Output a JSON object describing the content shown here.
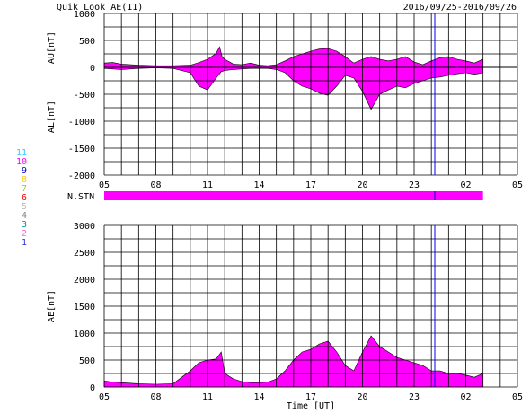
{
  "header": {
    "title": "Quik Look AE(11)",
    "date_range": "2016/09/25-2016/09/26"
  },
  "legend": {
    "entries": [
      {
        "label": "11",
        "color": "#33ccff"
      },
      {
        "label": "10",
        "color": "#ff00ff"
      },
      {
        "label": "9",
        "color": "#0000cc"
      },
      {
        "label": "8",
        "color": "#ffcc00"
      },
      {
        "label": "7",
        "color": "#99cc33"
      },
      {
        "label": "6",
        "color": "#ff0000"
      },
      {
        "label": "5",
        "color": "#bbbbbb"
      },
      {
        "label": "4",
        "color": "#888888"
      },
      {
        "label": "3",
        "color": "#009999"
      },
      {
        "label": "2",
        "color": "#ff66cc"
      },
      {
        "label": "1",
        "color": "#3333cc"
      }
    ]
  },
  "colors": {
    "fill": "#ff00ff",
    "grid": "#000000",
    "marker": "#0000ff"
  },
  "x_ticks": [
    "05",
    "08",
    "11",
    "14",
    "17",
    "20",
    "23",
    "02",
    "05"
  ],
  "chart_data": [
    {
      "type": "area",
      "ylabel_upper": "AU[nT]",
      "ylabel_lower": "AL[nT]",
      "ylim": [
        -2000,
        1000
      ],
      "yticks": [
        "1000",
        "500",
        "0",
        "-500",
        "-1000",
        "-1500",
        "-2000"
      ],
      "xlim": [
        0,
        24
      ],
      "grid": true,
      "series": [
        {
          "name": "AU",
          "x": [
            0,
            0.5,
            1,
            2,
            3,
            4,
            5,
            5.5,
            6,
            6.5,
            6.7,
            6.85,
            7,
            7.5,
            8,
            8.5,
            9,
            9.5,
            10,
            10.5,
            11,
            11.5,
            12,
            12.5,
            13,
            13.5,
            14,
            14.5,
            15,
            15.5,
            16,
            16.5,
            17,
            17.5,
            18,
            18.5,
            19,
            19.5,
            20,
            20.5,
            21,
            21.5,
            22
          ],
          "y": [
            80,
            90,
            60,
            40,
            30,
            30,
            40,
            90,
            150,
            260,
            380,
            200,
            150,
            60,
            50,
            80,
            40,
            30,
            50,
            120,
            200,
            250,
            300,
            340,
            350,
            300,
            200,
            80,
            150,
            200,
            150,
            120,
            150,
            200,
            100,
            50,
            120,
            180,
            200,
            150,
            120,
            80,
            150
          ]
        },
        {
          "name": "AL",
          "x": [
            0,
            0.5,
            1,
            2,
            3,
            4,
            5,
            5.5,
            6,
            6.5,
            6.8,
            7,
            7.5,
            8,
            8.5,
            9,
            9.5,
            10,
            10.5,
            11,
            11.5,
            12,
            12.5,
            13,
            13.5,
            14,
            14.5,
            15,
            15.5,
            16,
            16.5,
            17,
            17.5,
            18,
            18.5,
            19,
            19.5,
            20,
            20.5,
            21,
            21.5,
            22
          ],
          "y": [
            -20,
            -30,
            -40,
            -20,
            -10,
            -20,
            -100,
            -350,
            -420,
            -200,
            -80,
            -60,
            -40,
            -30,
            -20,
            -20,
            -20,
            -40,
            -100,
            -250,
            -350,
            -400,
            -480,
            -520,
            -350,
            -150,
            -200,
            -450,
            -780,
            -500,
            -420,
            -350,
            -380,
            -300,
            -250,
            -200,
            -180,
            -150,
            -120,
            -100,
            -130,
            -100
          ]
        }
      ]
    },
    {
      "type": "bar",
      "label": "N.STN",
      "value": 10,
      "x_start": 0,
      "x_end": 22
    },
    {
      "type": "area",
      "xlabel": "Time [UT]",
      "ylabel": "AE[nT]",
      "ylim": [
        0,
        3000
      ],
      "yticks": [
        "3000",
        "2500",
        "2000",
        "1500",
        "1000",
        "500",
        "0"
      ],
      "xlim": [
        0,
        24
      ],
      "grid": true,
      "series": [
        {
          "name": "AE",
          "x": [
            0,
            0.5,
            1,
            2,
            3,
            4,
            5,
            5.5,
            6,
            6.5,
            6.8,
            7,
            7.5,
            8,
            8.5,
            9,
            9.5,
            10,
            10.5,
            11,
            11.5,
            12,
            12.5,
            13,
            13.5,
            14,
            14.5,
            15,
            15.5,
            16,
            16.5,
            17,
            17.5,
            18,
            18.5,
            19,
            19.5,
            20,
            20.5,
            21,
            21.5,
            22
          ],
          "y": [
            110,
            90,
            80,
            60,
            50,
            60,
            300,
            450,
            500,
            520,
            650,
            250,
            150,
            100,
            80,
            80,
            90,
            150,
            300,
            500,
            650,
            700,
            800,
            850,
            650,
            400,
            300,
            650,
            950,
            750,
            650,
            550,
            500,
            450,
            400,
            300,
            300,
            250,
            250,
            220,
            180,
            250
          ]
        }
      ]
    }
  ]
}
